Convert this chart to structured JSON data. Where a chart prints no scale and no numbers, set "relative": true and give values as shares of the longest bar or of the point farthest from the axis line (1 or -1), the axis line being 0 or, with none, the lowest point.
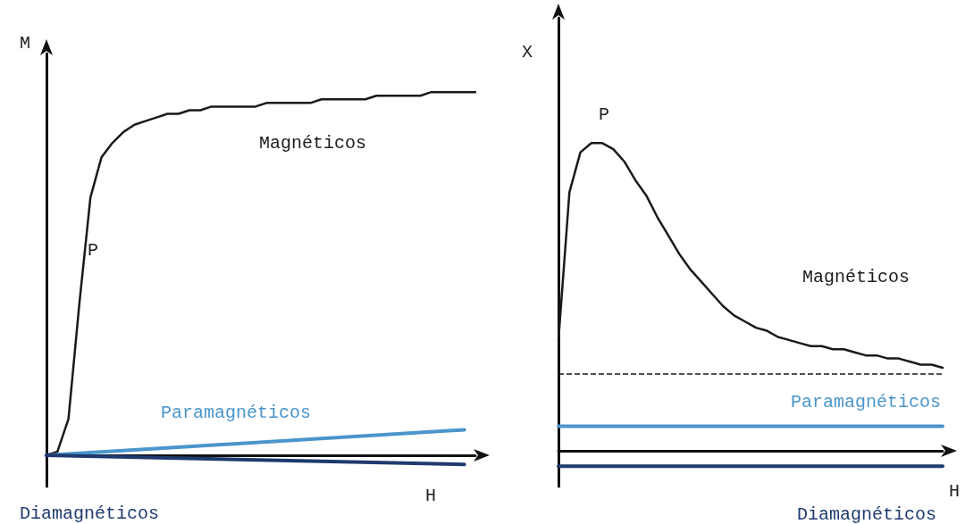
{
  "chart_data": [
    {
      "type": "line",
      "relative": true,
      "ylabel": "M",
      "xlabel": "H",
      "marker": "none",
      "annotations": [
        "P"
      ],
      "categories": [
        null,
        null,
        null,
        null,
        null,
        null,
        null,
        null,
        null,
        null,
        null,
        null,
        null,
        null,
        null,
        null,
        null,
        null,
        null,
        null,
        null,
        null,
        null,
        null,
        null,
        null,
        null,
        null,
        null,
        null,
        null,
        null,
        null,
        null,
        null,
        null,
        null,
        null,
        null,
        null
      ],
      "series": [
        {
          "name": "Magnéticos",
          "color": "#1a1a1a",
          "values": [
            0,
            0.01,
            0.1,
            0.42,
            0.71,
            0.82,
            0.86,
            0.89,
            0.91,
            0.92,
            0.93,
            0.94,
            0.94,
            0.95,
            0.95,
            0.96,
            0.96,
            0.96,
            0.96,
            0.96,
            0.97,
            0.97,
            0.97,
            0.97,
            0.97,
            0.98,
            0.98,
            0.98,
            0.98,
            0.98,
            0.99,
            0.99,
            0.99,
            0.99,
            0.99,
            1,
            1,
            1,
            1,
            1
          ]
        },
        {
          "name": "Paramagnéticos",
          "color": "#4a95cc",
          "values": [
            0,
            null,
            null,
            null,
            null,
            null,
            null,
            null,
            null,
            null,
            null,
            null,
            null,
            null,
            null,
            null,
            null,
            null,
            null,
            null,
            null,
            null,
            null,
            null,
            null,
            null,
            null,
            null,
            null,
            null,
            null,
            null,
            null,
            null,
            null,
            null,
            null,
            null,
            0.07,
            null
          ]
        },
        {
          "name": "Diamagnéticos",
          "color": "#1f3a6e",
          "values": [
            0,
            null,
            null,
            null,
            null,
            null,
            null,
            null,
            null,
            null,
            null,
            null,
            null,
            null,
            null,
            null,
            null,
            null,
            null,
            null,
            null,
            null,
            null,
            null,
            null,
            null,
            null,
            null,
            null,
            null,
            null,
            null,
            null,
            null,
            null,
            null,
            null,
            null,
            -0.025,
            null
          ]
        }
      ]
    },
    {
      "type": "line",
      "relative": true,
      "ylabel": "X",
      "xlabel": "H",
      "marker": "none",
      "annotations": [
        "P"
      ],
      "categories": [
        null,
        null,
        null,
        null,
        null,
        null,
        null,
        null,
        null,
        null,
        null,
        null,
        null,
        null,
        null,
        null,
        null,
        null,
        null,
        null,
        null,
        null,
        null,
        null,
        null,
        null,
        null,
        null,
        null,
        null,
        null,
        null,
        null,
        null,
        null,
        null
      ],
      "ref_lines": [
        {
          "axis": "y",
          "value": 0.25,
          "color": "#1a1a1a",
          "line_style": "dashed"
        }
      ],
      "series": [
        {
          "name": "Magnéticos",
          "color": "#1a1a1a",
          "values": [
            0.36,
            0.84,
            0.97,
            1,
            1,
            0.98,
            0.94,
            0.88,
            0.83,
            0.76,
            0.7,
            0.64,
            0.59,
            0.55,
            0.51,
            0.47,
            0.44,
            0.42,
            0.4,
            0.39,
            0.37,
            0.36,
            0.35,
            0.34,
            0.34,
            0.33,
            0.33,
            0.32,
            0.31,
            0.31,
            0.3,
            0.3,
            0.29,
            0.28,
            0.28,
            0.27
          ]
        },
        {
          "name": "Paramagnéticos",
          "color": "#4a95cc",
          "values": [
            0.08,
            null,
            null,
            null,
            null,
            null,
            null,
            null,
            null,
            null,
            null,
            null,
            null,
            null,
            null,
            null,
            null,
            null,
            null,
            null,
            null,
            null,
            null,
            null,
            null,
            null,
            null,
            null,
            null,
            null,
            null,
            null,
            null,
            null,
            null,
            0.08
          ]
        },
        {
          "name": "Diamagnéticos",
          "color": "#1f3a6e",
          "values": [
            -0.05,
            null,
            null,
            null,
            null,
            null,
            null,
            null,
            null,
            null,
            null,
            null,
            null,
            null,
            null,
            null,
            null,
            null,
            null,
            null,
            null,
            null,
            null,
            null,
            null,
            null,
            null,
            null,
            null,
            null,
            null,
            null,
            null,
            null,
            null,
            -0.05
          ]
        }
      ]
    }
  ]
}
